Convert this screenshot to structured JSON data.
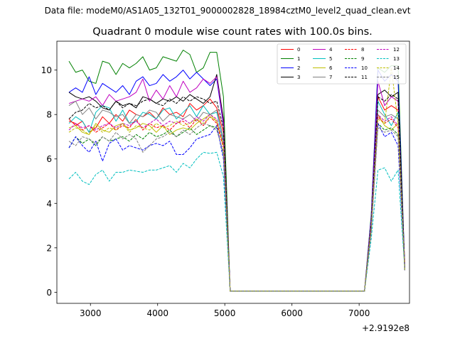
{
  "figure": {
    "suptitle": "Data file: modeM0/AS1A05_132T01_9000002828_18984cztM0_level2_quad_clean.evt"
  },
  "chart_data": {
    "type": "line",
    "title": "Quadrant 0 module wise count rates with 100.0s bins.",
    "xlabel": "",
    "ylabel": "",
    "x_offset_label": "+2.9192e8",
    "x_offset": 291920000,
    "xlim": [
      2500,
      7750
    ],
    "ylim": [
      -0.5,
      11.3
    ],
    "xticks": [
      3000,
      4000,
      5000,
      6000,
      7000
    ],
    "yticks": [
      0,
      2,
      4,
      6,
      8,
      10
    ],
    "grid": false,
    "legend_position": "top-right",
    "legend_columns": 4,
    "x": [
      2680,
      2780,
      2880,
      2980,
      3080,
      3180,
      3280,
      3380,
      3480,
      3580,
      3680,
      3780,
      3880,
      3980,
      4080,
      4180,
      4280,
      4380,
      4480,
      4580,
      4680,
      4780,
      4880,
      4980,
      5080,
      5180,
      5280,
      5380,
      5480,
      5580,
      5680,
      5780,
      5880,
      5980,
      6080,
      6180,
      6280,
      6380,
      6480,
      6580,
      6680,
      6780,
      6880,
      6980,
      7080,
      7180,
      7280,
      7380,
      7480,
      7580,
      7680
    ],
    "series": [
      {
        "name": "0",
        "color": "#ff0000",
        "dash": "solid",
        "values": [
          7.8,
          7.5,
          7.7,
          7.2,
          7.4,
          7.9,
          7.6,
          8.0,
          7.7,
          8.2,
          8.0,
          7.9,
          8.1,
          7.8,
          8.3,
          8.0,
          8.1,
          7.9,
          8.5,
          8.2,
          8.4,
          8.7,
          8.3,
          7.2,
          0.05,
          0.05,
          0.05,
          0.05,
          0.05,
          0.05,
          0.05,
          0.05,
          0.05,
          0.05,
          0.05,
          0.05,
          0.05,
          0.05,
          0.05,
          0.05,
          0.05,
          0.05,
          0.05,
          0.05,
          0.05,
          3.2,
          8.8,
          8.2,
          8.4,
          8.2,
          1.3
        ]
      },
      {
        "name": "1",
        "color": "#008000",
        "dash": "solid",
        "values": [
          10.4,
          9.9,
          10.0,
          9.5,
          9.4,
          10.4,
          10.3,
          9.8,
          10.3,
          10.1,
          10.3,
          10.6,
          10.0,
          10.1,
          10.6,
          10.5,
          10.4,
          10.9,
          10.7,
          9.9,
          10.1,
          10.8,
          10.8,
          8.8,
          0.05,
          0.05,
          0.05,
          0.05,
          0.05,
          0.05,
          0.05,
          0.05,
          0.05,
          0.05,
          0.05,
          0.05,
          0.05,
          0.05,
          0.05,
          0.05,
          0.05,
          0.05,
          0.05,
          0.05,
          0.05,
          3.5,
          10.1,
          9.9,
          10.2,
          10.2,
          1.0
        ]
      },
      {
        "name": "2",
        "color": "#0000ff",
        "dash": "solid",
        "values": [
          9.0,
          9.2,
          9.0,
          9.7,
          8.9,
          9.4,
          9.2,
          9.0,
          9.3,
          8.9,
          9.5,
          9.7,
          9.3,
          9.4,
          9.8,
          9.5,
          9.7,
          10.0,
          9.6,
          9.9,
          9.6,
          9.3,
          9.6,
          7.5,
          0.05,
          0.05,
          0.05,
          0.05,
          0.05,
          0.05,
          0.05,
          0.05,
          0.05,
          0.05,
          0.05,
          0.05,
          0.05,
          0.05,
          0.05,
          0.05,
          0.05,
          0.05,
          0.05,
          0.05,
          0.05,
          3.4,
          10.0,
          9.5,
          9.8,
          9.5,
          1.1
        ]
      },
      {
        "name": "3",
        "color": "#000000",
        "dash": "solid",
        "values": [
          9.0,
          8.8,
          8.7,
          8.8,
          8.6,
          8.3,
          8.2,
          8.6,
          8.4,
          8.5,
          8.3,
          8.8,
          8.7,
          8.5,
          8.7,
          8.6,
          8.8,
          8.6,
          8.9,
          8.7,
          8.5,
          8.8,
          9.8,
          7.8,
          0.05,
          0.05,
          0.05,
          0.05,
          0.05,
          0.05,
          0.05,
          0.05,
          0.05,
          0.05,
          0.05,
          0.05,
          0.05,
          0.05,
          0.05,
          0.05,
          0.05,
          0.05,
          0.05,
          0.05,
          0.05,
          3.0,
          8.9,
          9.1,
          8.8,
          9.0,
          1.0
        ]
      },
      {
        "name": "4",
        "color": "#bf00bf",
        "dash": "solid",
        "values": [
          8.5,
          8.6,
          8.7,
          8.6,
          8.8,
          8.4,
          8.9,
          8.6,
          8.7,
          8.8,
          9.0,
          9.6,
          8.6,
          9.1,
          8.7,
          9.3,
          8.8,
          9.5,
          9.0,
          9.2,
          9.6,
          9.4,
          9.7,
          7.6,
          0.05,
          0.05,
          0.05,
          0.05,
          0.05,
          0.05,
          0.05,
          0.05,
          0.05,
          0.05,
          0.05,
          0.05,
          0.05,
          0.05,
          0.05,
          0.05,
          0.05,
          0.05,
          0.05,
          0.05,
          0.05,
          3.3,
          9.5,
          8.4,
          8.8,
          8.6,
          1.0
        ]
      },
      {
        "name": "5",
        "color": "#00bfbf",
        "dash": "solid",
        "values": [
          7.6,
          7.9,
          7.7,
          7.2,
          8.1,
          8.4,
          8.3,
          7.7,
          8.2,
          7.6,
          7.7,
          8.1,
          8.0,
          7.8,
          8.2,
          8.3,
          7.8,
          8.1,
          8.4,
          7.9,
          8.4,
          8.0,
          8.1,
          6.8,
          0.05,
          0.05,
          0.05,
          0.05,
          0.05,
          0.05,
          0.05,
          0.05,
          0.05,
          0.05,
          0.05,
          0.05,
          0.05,
          0.05,
          0.05,
          0.05,
          0.05,
          0.05,
          0.05,
          0.05,
          0.05,
          3.1,
          8.6,
          8.0,
          7.5,
          8.1,
          1.0
        ]
      },
      {
        "name": "6",
        "color": "#bfbf00",
        "dash": "solid",
        "values": [
          7.4,
          7.5,
          7.2,
          7.1,
          7.6,
          7.3,
          7.2,
          7.5,
          7.6,
          7.3,
          7.4,
          7.6,
          7.5,
          7.2,
          7.5,
          7.1,
          7.3,
          7.4,
          7.3,
          7.6,
          7.8,
          8.0,
          7.7,
          6.6,
          0.05,
          0.05,
          0.05,
          0.05,
          0.05,
          0.05,
          0.05,
          0.05,
          0.05,
          0.05,
          0.05,
          0.05,
          0.05,
          0.05,
          0.05,
          0.05,
          0.05,
          0.05,
          0.05,
          0.05,
          0.05,
          2.9,
          8.0,
          7.5,
          7.3,
          7.6,
          1.0
        ]
      },
      {
        "name": "7",
        "color": "#808080",
        "dash": "solid",
        "values": [
          8.4,
          8.6,
          8.0,
          8.3,
          7.8,
          8.2,
          8.1,
          7.9,
          8.0,
          7.6,
          8.0,
          7.9,
          8.2,
          8.1,
          7.7,
          8.0,
          7.9,
          7.8,
          8.0,
          7.7,
          8.1,
          8.0,
          8.2,
          6.9,
          0.05,
          0.05,
          0.05,
          0.05,
          0.05,
          0.05,
          0.05,
          0.05,
          0.05,
          0.05,
          0.05,
          0.05,
          0.05,
          0.05,
          0.05,
          0.05,
          0.05,
          0.05,
          0.05,
          0.05,
          0.05,
          3.0,
          8.2,
          7.9,
          8.0,
          7.8,
          1.0
        ]
      },
      {
        "name": "8",
        "color": "#ff0000",
        "dash": "dashed",
        "values": [
          7.7,
          7.6,
          7.3,
          7.5,
          7.2,
          7.4,
          7.6,
          7.3,
          7.5,
          7.4,
          7.8,
          7.3,
          7.6,
          7.4,
          7.5,
          7.3,
          7.6,
          7.7,
          7.4,
          7.8,
          7.5,
          7.9,
          7.6,
          6.5,
          0.05,
          0.05,
          0.05,
          0.05,
          0.05,
          0.05,
          0.05,
          0.05,
          0.05,
          0.05,
          0.05,
          0.05,
          0.05,
          0.05,
          0.05,
          0.05,
          0.05,
          0.05,
          0.05,
          0.05,
          0.05,
          2.9,
          7.9,
          7.6,
          7.8,
          7.4,
          1.0
        ]
      },
      {
        "name": "9",
        "color": "#008000",
        "dash": "dashed",
        "values": [
          6.5,
          7.0,
          6.7,
          6.9,
          6.6,
          7.0,
          6.8,
          6.9,
          7.0,
          6.8,
          7.1,
          6.9,
          7.2,
          7.0,
          7.1,
          7.3,
          7.0,
          7.2,
          7.4,
          7.1,
          7.3,
          7.5,
          7.4,
          6.2,
          0.05,
          0.05,
          0.05,
          0.05,
          0.05,
          0.05,
          0.05,
          0.05,
          0.05,
          0.05,
          0.05,
          0.05,
          0.05,
          0.05,
          0.05,
          0.05,
          0.05,
          0.05,
          0.05,
          0.05,
          0.05,
          2.8,
          7.6,
          7.3,
          7.4,
          7.1,
          1.0
        ]
      },
      {
        "name": "10",
        "color": "#0000ff",
        "dash": "dashed",
        "values": [
          6.5,
          7.0,
          6.6,
          6.3,
          6.8,
          5.9,
          6.7,
          6.9,
          6.4,
          6.6,
          6.5,
          6.4,
          6.6,
          6.7,
          6.6,
          6.8,
          6.2,
          6.2,
          6.5,
          6.9,
          7.0,
          7.1,
          7.5,
          6.0,
          0.05,
          0.05,
          0.05,
          0.05,
          0.05,
          0.05,
          0.05,
          0.05,
          0.05,
          0.05,
          0.05,
          0.05,
          0.05,
          0.05,
          0.05,
          0.05,
          0.05,
          0.05,
          0.05,
          0.05,
          0.05,
          2.8,
          7.6,
          7.0,
          7.2,
          6.6,
          1.0
        ]
      },
      {
        "name": "11",
        "color": "#000000",
        "dash": "dashed",
        "values": [
          7.8,
          8.1,
          8.2,
          8.5,
          8.3,
          8.4,
          8.2,
          8.6,
          8.3,
          8.5,
          8.4,
          8.6,
          8.7,
          8.5,
          8.4,
          8.7,
          8.5,
          8.8,
          8.6,
          8.8,
          8.7,
          8.5,
          8.6,
          7.4,
          0.05,
          0.05,
          0.05,
          0.05,
          0.05,
          0.05,
          0.05,
          0.05,
          0.05,
          0.05,
          0.05,
          0.05,
          0.05,
          0.05,
          0.05,
          0.05,
          0.05,
          0.05,
          0.05,
          0.05,
          0.05,
          3.1,
          8.8,
          8.6,
          8.9,
          8.7,
          1.0
        ]
      },
      {
        "name": "12",
        "color": "#bf00bf",
        "dash": "dashed",
        "values": [
          7.3,
          7.6,
          7.4,
          7.5,
          7.3,
          7.5,
          7.6,
          7.4,
          7.6,
          7.5,
          7.7,
          7.4,
          7.6,
          7.8,
          7.5,
          7.7,
          7.6,
          7.8,
          7.6,
          7.9,
          7.7,
          8.0,
          7.8,
          6.7,
          0.05,
          0.05,
          0.05,
          0.05,
          0.05,
          0.05,
          0.05,
          0.05,
          0.05,
          0.05,
          0.05,
          0.05,
          0.05,
          0.05,
          0.05,
          0.05,
          0.05,
          0.05,
          0.05,
          0.05,
          0.05,
          2.9,
          8.0,
          7.7,
          7.9,
          7.5,
          1.0
        ]
      },
      {
        "name": "13",
        "color": "#00bfbf",
        "dash": "dashed",
        "values": [
          5.1,
          5.4,
          5.0,
          4.85,
          5.3,
          5.5,
          5.0,
          5.4,
          5.4,
          5.5,
          5.45,
          5.4,
          5.5,
          5.5,
          5.6,
          5.7,
          5.4,
          5.8,
          5.6,
          6.0,
          6.3,
          6.25,
          6.3,
          5.2,
          0.05,
          0.05,
          0.05,
          0.05,
          0.05,
          0.05,
          0.05,
          0.05,
          0.05,
          0.05,
          0.05,
          0.05,
          0.05,
          0.05,
          0.05,
          0.05,
          0.05,
          0.05,
          0.05,
          0.05,
          0.05,
          2.4,
          5.5,
          5.6,
          5.0,
          5.5,
          1.0
        ]
      },
      {
        "name": "14",
        "color": "#bfbf00",
        "dash": "dashed",
        "values": [
          7.2,
          7.4,
          7.3,
          7.1,
          7.5,
          7.2,
          7.4,
          7.3,
          7.6,
          7.2,
          7.5,
          7.4,
          7.3,
          7.6,
          7.4,
          7.5,
          7.7,
          7.5,
          7.6,
          7.8,
          7.6,
          7.9,
          7.7,
          6.6,
          0.05,
          0.05,
          0.05,
          0.05,
          0.05,
          0.05,
          0.05,
          0.05,
          0.05,
          0.05,
          0.05,
          0.05,
          0.05,
          0.05,
          0.05,
          0.05,
          0.05,
          0.05,
          0.05,
          0.05,
          0.05,
          2.9,
          7.8,
          7.6,
          10.1,
          7.6,
          1.0
        ]
      },
      {
        "name": "15",
        "color": "#808080",
        "dash": "dashed",
        "values": [
          6.8,
          6.6,
          7.0,
          6.9,
          6.7,
          7.0,
          6.8,
          7.2,
          6.9,
          7.1,
          6.9,
          6.3,
          6.6,
          6.9,
          7.0,
          7.2,
          7.0,
          7.3,
          7.1,
          7.4,
          7.6,
          7.5,
          7.3,
          6.3,
          0.05,
          0.05,
          0.05,
          0.05,
          0.05,
          0.05,
          0.05,
          0.05,
          0.05,
          0.05,
          0.05,
          0.05,
          0.05,
          0.05,
          0.05,
          0.05,
          0.05,
          0.05,
          0.05,
          0.05,
          0.05,
          2.7,
          7.4,
          7.2,
          7.3,
          7.0,
          1.0
        ]
      }
    ]
  }
}
